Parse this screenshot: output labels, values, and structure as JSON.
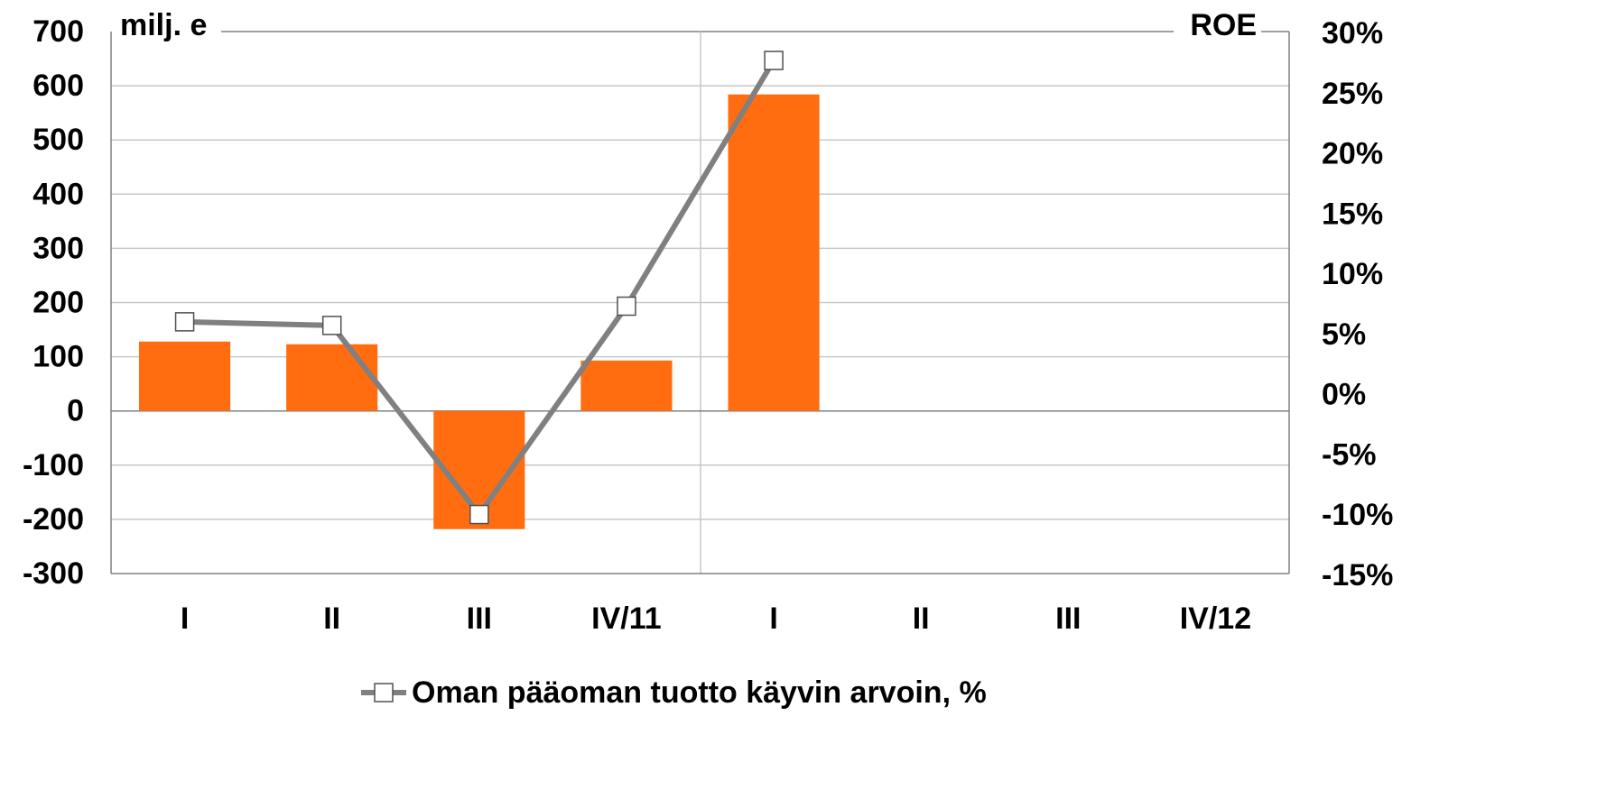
{
  "chart_data": {
    "type": "bar",
    "ylabel": "milj. e",
    "y2label": "ROE",
    "categories": [
      "I",
      "II",
      "III",
      "IV/11",
      "I",
      "II",
      "III",
      "IV/12"
    ],
    "series": [
      {
        "type": "bar",
        "color": "#ff6d10",
        "values": [
          128,
          123,
          -218,
          93,
          584,
          null,
          null,
          null
        ]
      },
      {
        "type": "line",
        "name": "Oman pääoman tuotto käyvin arvoin, %",
        "color": "#808080",
        "axis": "y2",
        "values": [
          5.9,
          5.6,
          -10.1,
          7.2,
          27.6,
          null,
          null,
          null
        ]
      }
    ],
    "ylim": [
      -300,
      700
    ],
    "yticks": [
      -300,
      -200,
      -100,
      0,
      100,
      200,
      300,
      400,
      500,
      600,
      700
    ],
    "y2lim": [
      -15,
      30
    ],
    "y2ticks": [
      {
        "value": -15,
        "label": "-15%"
      },
      {
        "value": -10,
        "label": "-10%"
      },
      {
        "value": -5,
        "label": "-5%"
      },
      {
        "value": 0,
        "label": "0%"
      },
      {
        "value": 5,
        "label": "5%"
      },
      {
        "value": 10,
        "label": "10%"
      },
      {
        "value": 15,
        "label": "15%"
      },
      {
        "value": 20,
        "label": "20%"
      },
      {
        "value": 25,
        "label": "25%"
      },
      {
        "value": 30,
        "label": "30%"
      }
    ],
    "grid": true,
    "legend": "bottom"
  }
}
